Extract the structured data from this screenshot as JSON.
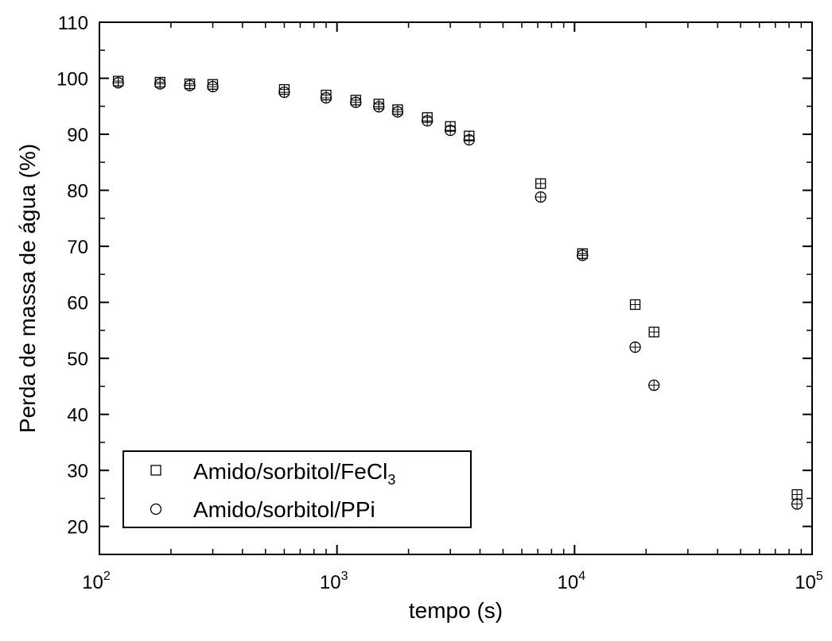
{
  "chart_data": {
    "type": "scatter",
    "xlabel": "tempo (s)",
    "ylabel": "Perda de massa de água (%)",
    "xscale": "log",
    "xlim": [
      100,
      100000
    ],
    "ylim": [
      15,
      110
    ],
    "x_ticks": [
      {
        "value": 100,
        "base": "10",
        "exp": "2"
      },
      {
        "value": 1000,
        "base": "10",
        "exp": "3"
      },
      {
        "value": 10000,
        "base": "10",
        "exp": "4"
      },
      {
        "value": 100000,
        "base": "10",
        "exp": "5"
      }
    ],
    "y_ticks": [
      20,
      30,
      40,
      50,
      60,
      70,
      80,
      90,
      100,
      110
    ],
    "grid": false,
    "legend": {
      "position": "bottom-left",
      "entries": [
        {
          "marker": "square",
          "text": "Amido/sorbitol/FeCl",
          "subscript": "3"
        },
        {
          "marker": "circle",
          "text": "Amido/sorbitol/PPi",
          "subscript": ""
        }
      ]
    },
    "series": [
      {
        "marker": "square",
        "x": [
          120,
          180,
          240,
          300,
          600,
          900,
          1200,
          1500,
          1800,
          2400,
          3000,
          3600,
          7200,
          10800,
          18000,
          21600,
          86400
        ],
        "y": [
          99.5,
          99.3,
          99.0,
          98.9,
          98.0,
          97.0,
          96.1,
          95.4,
          94.4,
          93.0,
          91.4,
          89.7,
          81.2,
          68.7,
          59.6,
          54.7,
          25.7
        ]
      },
      {
        "marker": "circle",
        "x": [
          120,
          180,
          240,
          300,
          600,
          900,
          1200,
          1500,
          1800,
          2400,
          3000,
          3600,
          7200,
          10800,
          18000,
          21600,
          86400
        ],
        "y": [
          99.2,
          99.0,
          98.7,
          98.5,
          97.5,
          96.5,
          95.7,
          94.9,
          94.0,
          92.4,
          90.7,
          89.0,
          78.8,
          68.4,
          52.0,
          45.2,
          24.0
        ]
      }
    ]
  }
}
